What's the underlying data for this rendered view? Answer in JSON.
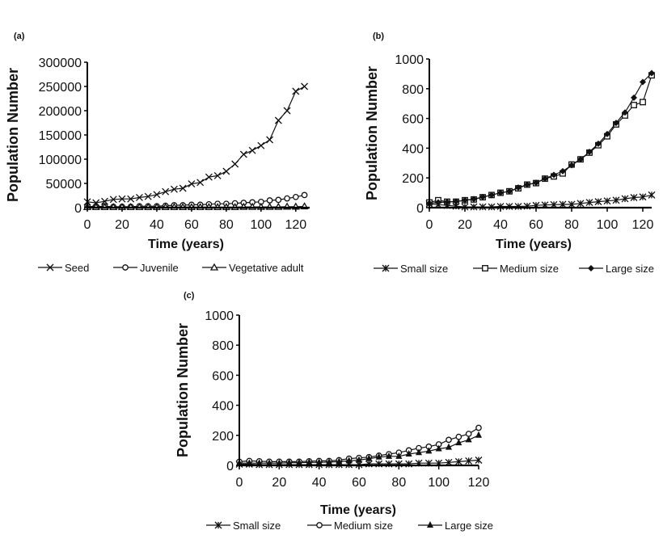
{
  "chart_data": [
    {
      "type": "line",
      "panel_label": "(a)",
      "xlabel": "Time (years)",
      "ylabel": "Population Number",
      "xlim": [
        0,
        128
      ],
      "ylim": [
        0,
        300000
      ],
      "xticks": [
        0,
        20,
        40,
        60,
        80,
        100,
        120
      ],
      "yticks": [
        0,
        50000,
        100000,
        150000,
        200000,
        250000,
        300000
      ],
      "grid": false,
      "legend_position": "bottom",
      "x": [
        0,
        5,
        10,
        15,
        20,
        25,
        30,
        35,
        40,
        45,
        50,
        55,
        60,
        65,
        70,
        75,
        80,
        85,
        90,
        95,
        100,
        105,
        110,
        115,
        120,
        125
      ],
      "series": [
        {
          "name": "Seed",
          "marker": "x-cross",
          "values": [
            12000,
            10000,
            13000,
            17000,
            18000,
            18000,
            21000,
            23000,
            27000,
            33000,
            38000,
            40000,
            49000,
            52000,
            63000,
            66000,
            75000,
            90000,
            110000,
            118000,
            128000,
            140000,
            180000,
            200000,
            240000,
            250000
          ]
        },
        {
          "name": "Juvenile",
          "marker": "open-circle",
          "values": [
            3000,
            2000,
            3000,
            2000,
            2000,
            2000,
            3000,
            3000,
            3000,
            4000,
            5000,
            5000,
            6000,
            6000,
            7000,
            8000,
            8000,
            9000,
            10000,
            11000,
            12000,
            15000,
            16000,
            19000,
            22000,
            26000
          ]
        },
        {
          "name": "Vegetative adult",
          "marker": "open-triangle",
          "values": [
            1000,
            1000,
            1000,
            1000,
            1000,
            1000,
            1000,
            1000,
            1000,
            1000,
            1000,
            1000,
            1000,
            1000,
            1000,
            1000,
            1000,
            1000,
            1500,
            1500,
            1500,
            1500,
            1500,
            2000,
            2000,
            2500
          ]
        }
      ]
    },
    {
      "type": "line",
      "panel_label": "(b)",
      "xlabel": "Time (years)",
      "ylabel": "Population Number",
      "xlim": [
        0,
        125
      ],
      "ylim": [
        0,
        1000
      ],
      "xticks": [
        0,
        20,
        40,
        60,
        80,
        100,
        120
      ],
      "yticks": [
        0,
        200,
        400,
        600,
        800,
        1000
      ],
      "grid": false,
      "legend_position": "bottom",
      "x": [
        0,
        5,
        10,
        15,
        20,
        25,
        30,
        35,
        40,
        45,
        50,
        55,
        60,
        65,
        70,
        75,
        80,
        85,
        90,
        95,
        100,
        105,
        110,
        115,
        120,
        125
      ],
      "series": [
        {
          "name": "Small size",
          "marker": "asterisk",
          "values": [
            25,
            20,
            15,
            10,
            5,
            5,
            5,
            5,
            8,
            8,
            8,
            10,
            15,
            18,
            20,
            22,
            22,
            28,
            35,
            40,
            45,
            50,
            60,
            68,
            72,
            85
          ]
        },
        {
          "name": "Medium size",
          "marker": "open-square",
          "values": [
            35,
            50,
            40,
            40,
            50,
            55,
            70,
            85,
            100,
            110,
            130,
            155,
            165,
            195,
            210,
            230,
            290,
            325,
            370,
            420,
            480,
            560,
            620,
            690,
            710,
            890
          ]
        },
        {
          "name": "Large size",
          "marker": "filled-diamond",
          "values": [
            30,
            35,
            38,
            42,
            50,
            58,
            72,
            85,
            100,
            110,
            135,
            155,
            168,
            195,
            220,
            245,
            285,
            325,
            375,
            430,
            495,
            570,
            640,
            740,
            845,
            905
          ]
        }
      ]
    },
    {
      "type": "line",
      "panel_label": "(c)",
      "xlabel": "Time (years)",
      "ylabel": "Population Number",
      "xlim": [
        0,
        120
      ],
      "ylim": [
        0,
        1000
      ],
      "xticks": [
        0,
        20,
        40,
        60,
        80,
        100,
        120
      ],
      "yticks": [
        0,
        200,
        400,
        600,
        800,
        1000
      ],
      "grid": false,
      "legend_position": "bottom",
      "x": [
        0,
        5,
        10,
        15,
        20,
        25,
        30,
        35,
        40,
        45,
        50,
        55,
        60,
        65,
        70,
        75,
        80,
        85,
        90,
        95,
        100,
        105,
        110,
        115,
        120
      ],
      "series": [
        {
          "name": "Small size",
          "marker": "asterisk",
          "values": [
            8,
            8,
            5,
            5,
            5,
            5,
            5,
            5,
            5,
            5,
            5,
            5,
            5,
            10,
            10,
            10,
            10,
            10,
            15,
            15,
            15,
            20,
            25,
            30,
            35
          ]
        },
        {
          "name": "Medium size",
          "marker": "open-circle",
          "values": [
            25,
            30,
            28,
            25,
            25,
            25,
            25,
            28,
            30,
            30,
            35,
            45,
            50,
            55,
            65,
            75,
            85,
            100,
            115,
            125,
            140,
            170,
            190,
            210,
            250
          ]
        },
        {
          "name": "Large size",
          "marker": "filled-triangle",
          "values": [
            15,
            15,
            15,
            15,
            15,
            18,
            18,
            20,
            20,
            22,
            25,
            30,
            35,
            45,
            55,
            60,
            60,
            75,
            85,
            95,
            110,
            120,
            150,
            170,
            200
          ]
        }
      ]
    }
  ]
}
